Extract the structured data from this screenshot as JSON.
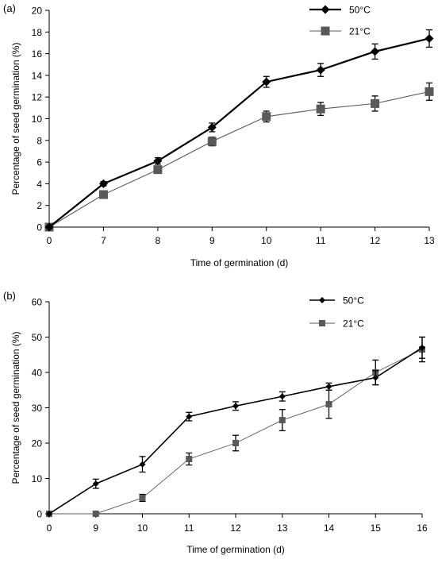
{
  "chart_data": [
    {
      "type": "line",
      "panel_label": "(a)",
      "xlabel": "Time of germination (d)",
      "ylabel": "Percentage of seed germination (%)",
      "categories": [
        "0",
        "7",
        "8",
        "9",
        "10",
        "11",
        "12",
        "13"
      ],
      "ylim": [
        0,
        20
      ],
      "yticks": [
        0,
        2,
        4,
        6,
        8,
        10,
        12,
        14,
        16,
        18,
        20
      ],
      "legend_position": "top-right",
      "series": [
        {
          "name": "50°C",
          "marker": "diamond",
          "color": "#000000",
          "values": [
            0,
            4.0,
            6.1,
            9.2,
            13.4,
            14.5,
            16.2,
            17.4
          ],
          "errors": [
            0,
            0.2,
            0.3,
            0.4,
            0.5,
            0.6,
            0.7,
            0.8
          ]
        },
        {
          "name": "21°C",
          "marker": "square",
          "color": "#595959",
          "values": [
            0,
            3.0,
            5.3,
            7.9,
            10.2,
            10.9,
            11.4,
            12.5
          ],
          "errors": [
            0,
            0.1,
            0.2,
            0.4,
            0.5,
            0.6,
            0.7,
            0.8
          ]
        }
      ]
    },
    {
      "type": "line",
      "panel_label": "(b)",
      "xlabel": "Time of germination (d)",
      "ylabel": "Percentage of seed germination (%)",
      "categories": [
        "0",
        "9",
        "10",
        "11",
        "12",
        "13",
        "14",
        "15",
        "16"
      ],
      "ylim": [
        0,
        60
      ],
      "yticks": [
        0,
        10,
        20,
        30,
        40,
        50,
        60
      ],
      "legend_position": "top-right",
      "series": [
        {
          "name": "50°C",
          "marker": "diamond",
          "color": "#000000",
          "values": [
            0,
            8.5,
            14.0,
            27.5,
            30.5,
            33.2,
            36.0,
            38.5,
            47.0
          ],
          "errors": [
            0,
            1.3,
            2.2,
            1.2,
            1.2,
            1.3,
            1.0,
            2.0,
            3.0
          ]
        },
        {
          "name": "21°C",
          "marker": "square",
          "color": "#595959",
          "values": [
            0,
            0,
            4.5,
            15.5,
            20.0,
            26.5,
            31.0,
            40.0,
            46.5
          ],
          "errors": [
            0,
            0,
            1.0,
            1.7,
            2.2,
            3.0,
            4.0,
            3.5,
            3.5
          ]
        }
      ]
    }
  ]
}
